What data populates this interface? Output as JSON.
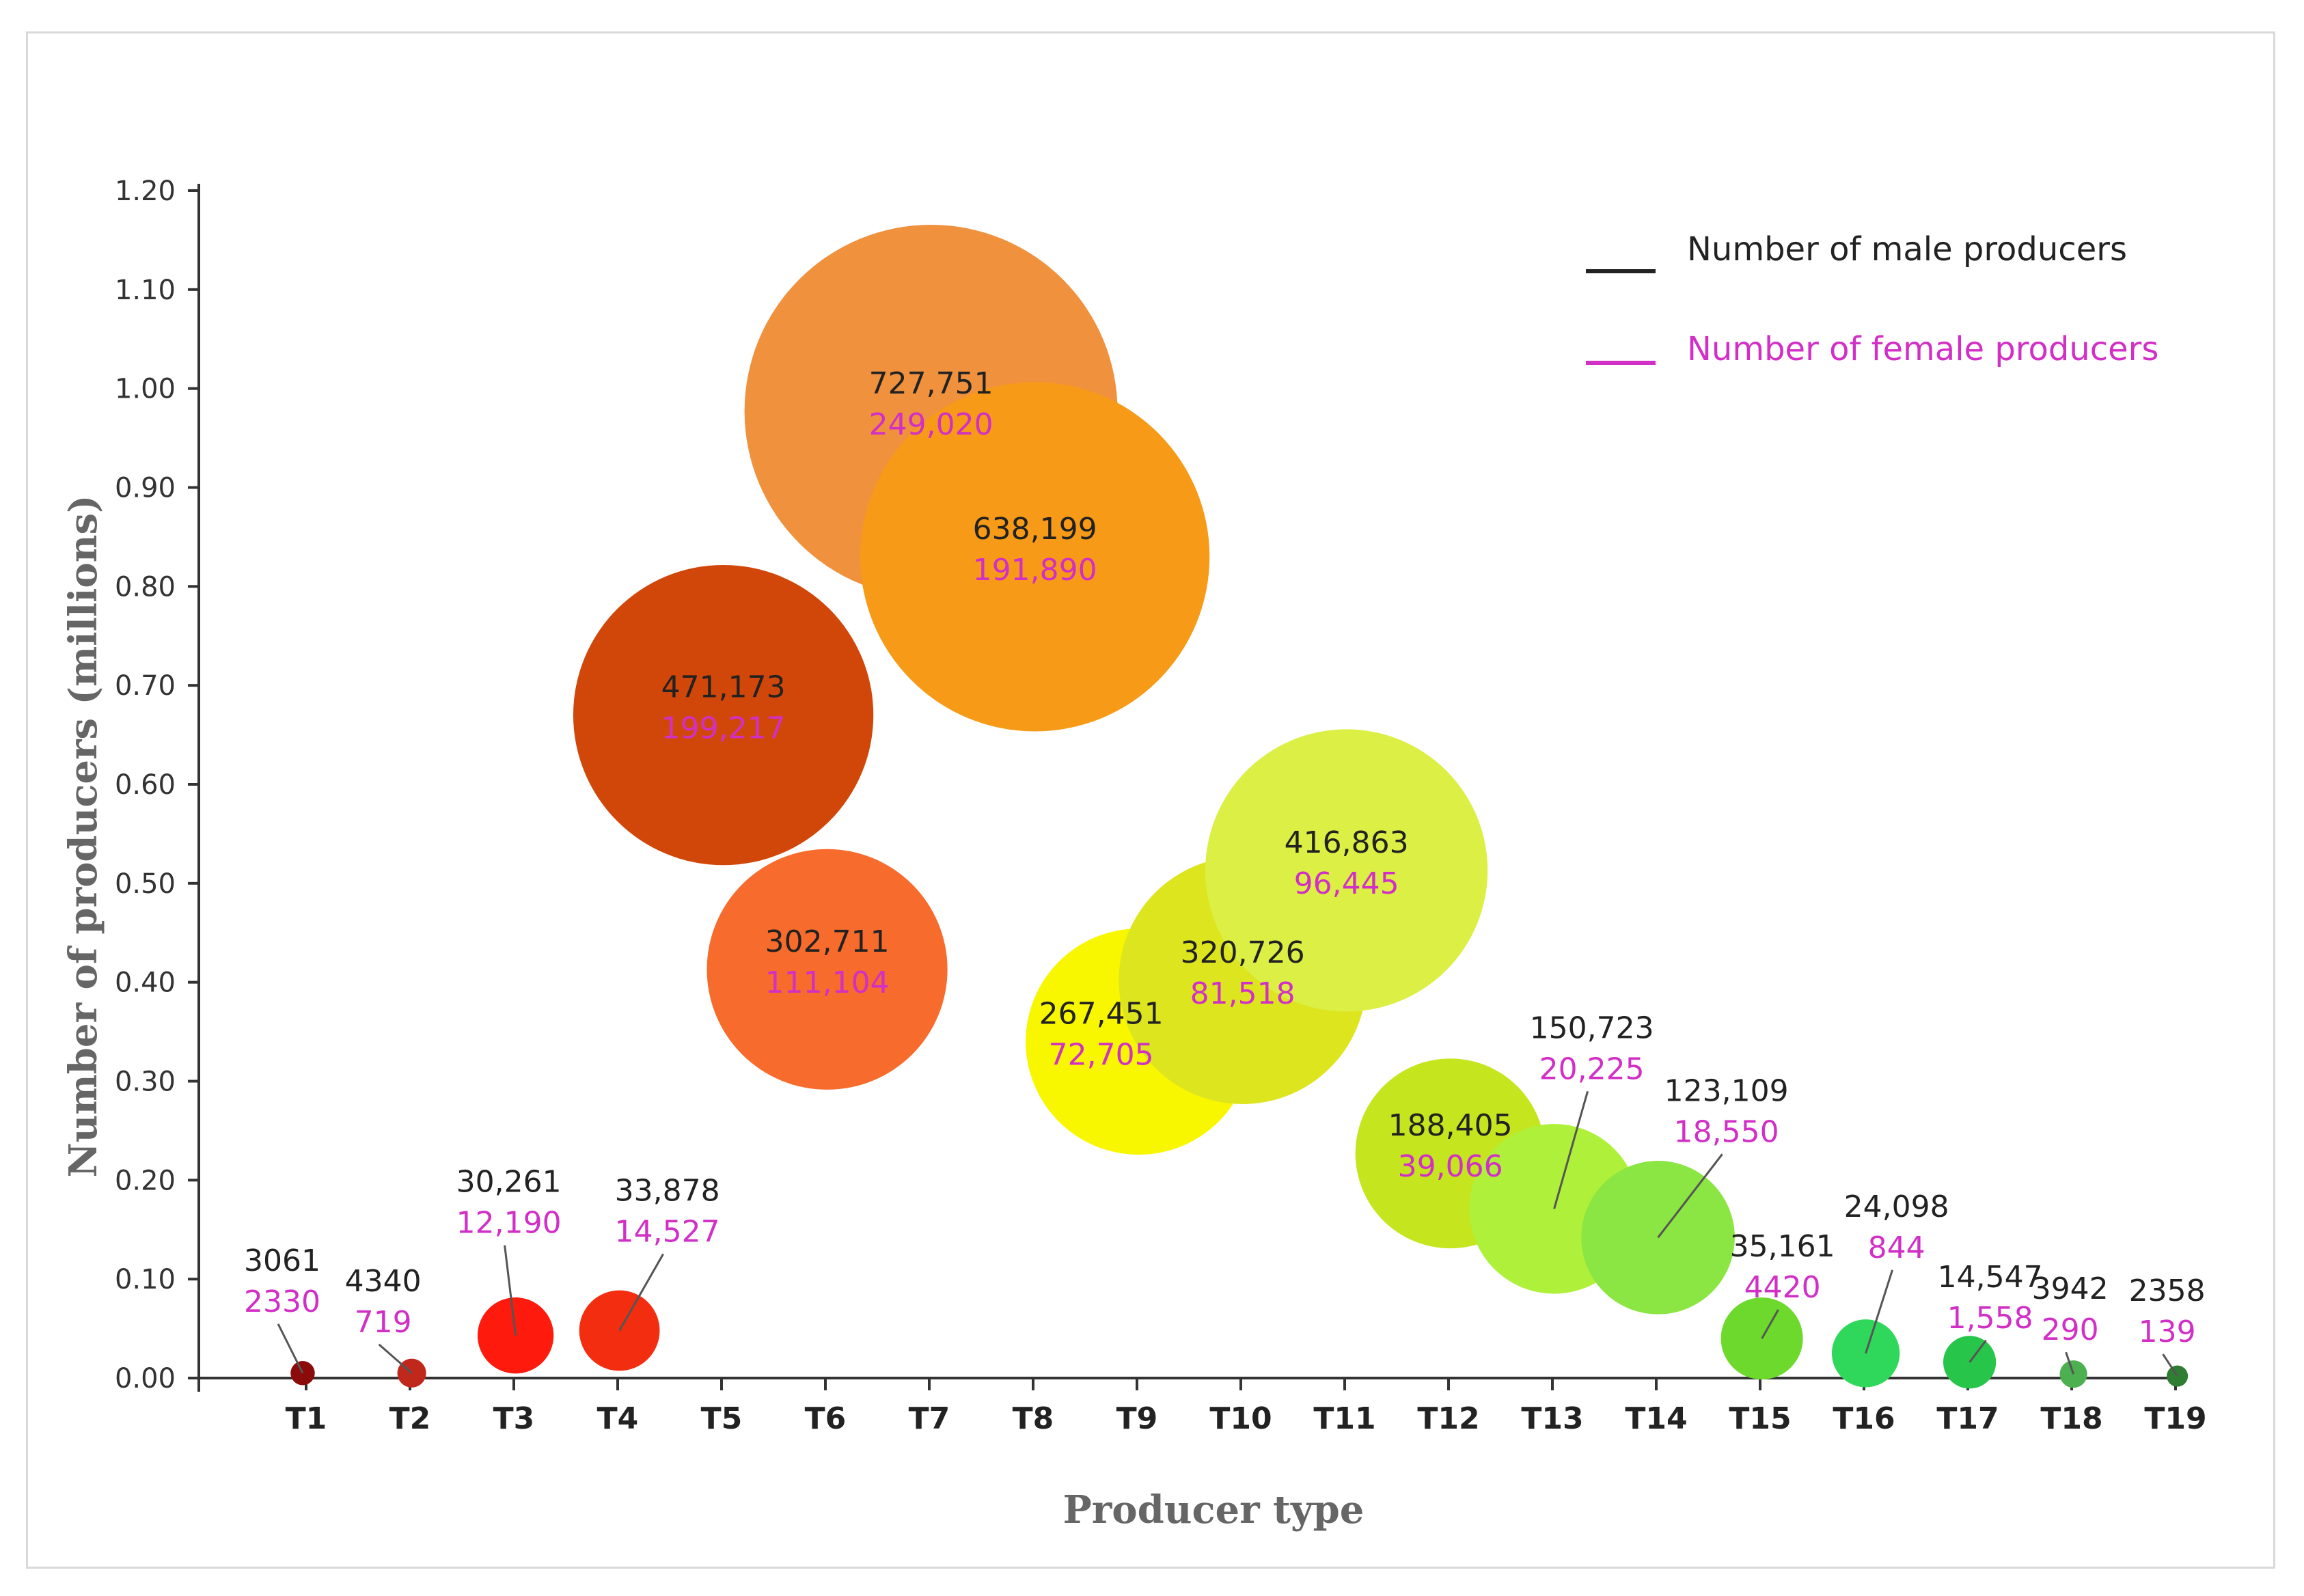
{
  "chart_data": {
    "type": "bubble",
    "xlabel": "Producer type",
    "ylabel": "Number of producers (millions)",
    "ylim": [
      0,
      1.2
    ],
    "yticks": [
      "0.00",
      "0.10",
      "0.20",
      "0.30",
      "0.40",
      "0.50",
      "0.60",
      "0.70",
      "0.80",
      "0.90",
      "1.00",
      "1.10",
      "1.20"
    ],
    "categories": [
      "T1",
      "T2",
      "T3",
      "T4",
      "T5",
      "T6",
      "T7",
      "T8",
      "T9",
      "T10",
      "T11",
      "T12",
      "T13",
      "T14",
      "T15",
      "T16",
      "T17",
      "T18",
      "T19"
    ],
    "legend": {
      "position": "top-right",
      "male_label": "Number of male producers",
      "female_label": "Number of female producers",
      "male_color": "#222222",
      "female_color": "#d12fc6"
    },
    "points": [
      {
        "x": 1.0,
        "y": 0.005,
        "male": "3061",
        "female": "2330",
        "color": "#8b0a0a",
        "male_value": 3061,
        "female_value": 2330
      },
      {
        "x": 2.05,
        "y": 0.005,
        "male": "4340",
        "female": "719",
        "color": "#c0281c",
        "male_value": 4340,
        "female_value": 719
      },
      {
        "x": 3.05,
        "y": 0.043,
        "male": "30,261",
        "female": "12,190",
        "color": "#ff1a0e",
        "male_value": 30261,
        "female_value": 12190
      },
      {
        "x": 4.05,
        "y": 0.048,
        "male": "33,878",
        "female": "14,527",
        "color": "#f22d10",
        "male_value": 33878,
        "female_value": 14527
      },
      {
        "x": 5.05,
        "y": 0.67,
        "male": "471,173",
        "female": "199,217",
        "color": "#d1470a",
        "male_value": 471173,
        "female_value": 199217
      },
      {
        "x": 6.05,
        "y": 0.413,
        "male": "302,711",
        "female": "111,104",
        "color": "#f76b2c",
        "male_value": 302711,
        "female_value": 111104
      },
      {
        "x": 7.05,
        "y": 0.977,
        "male": "727,751",
        "female": "249,020",
        "color": "#f0913e",
        "male_value": 727751,
        "female_value": 249020
      },
      {
        "x": 8.05,
        "y": 0.83,
        "male": "638,199",
        "female": "191,890",
        "color": "#f79a17",
        "male_value": 638199,
        "female_value": 191890
      },
      {
        "x": 9.05,
        "y": 0.34,
        "male": "267,451",
        "female": "72,705",
        "color": "#f8f700",
        "male_value": 267451,
        "female_value": 72705
      },
      {
        "x": 10.05,
        "y": 0.402,
        "male": "320,726",
        "female": "81,518",
        "color": "#dde51f",
        "male_value": 320726,
        "female_value": 81518
      },
      {
        "x": 11.05,
        "y": 0.513,
        "male": "416,863",
        "female": "96,445",
        "color": "#dbef44",
        "male_value": 416863,
        "female_value": 96445
      },
      {
        "x": 12.05,
        "y": 0.227,
        "male": "188,405",
        "female": "39,066",
        "color": "#c5e51e",
        "male_value": 188405,
        "female_value": 39066
      },
      {
        "x": 13.05,
        "y": 0.171,
        "male": "150,723",
        "female": "20,225",
        "color": "#aff03a",
        "male_value": 150723,
        "female_value": 20225
      },
      {
        "x": 14.05,
        "y": 0.142,
        "male": "123,109",
        "female": "18,550",
        "color": "#8be542",
        "male_value": 123109,
        "female_value": 18550
      },
      {
        "x": 15.05,
        "y": 0.04,
        "male": "35,161",
        "female": "4420",
        "color": "#6cd92c",
        "male_value": 35161,
        "female_value": 4420
      },
      {
        "x": 16.05,
        "y": 0.025,
        "male": "24,098",
        "female": "844",
        "color": "#2fd85a",
        "male_value": 24098,
        "female_value": 844
      },
      {
        "x": 17.05,
        "y": 0.016,
        "male": "14,547",
        "female": "1,558",
        "color": "#28c54b",
        "male_value": 14547,
        "female_value": 1558
      },
      {
        "x": 18.05,
        "y": 0.004,
        "male": "3942",
        "female": "290",
        "color": "#4caf50",
        "male_value": 3942,
        "female_value": 290
      },
      {
        "x": 19.05,
        "y": 0.002,
        "male": "2358",
        "female": "139",
        "color": "#2e7d32",
        "male_value": 2358,
        "female_value": 139
      }
    ]
  }
}
